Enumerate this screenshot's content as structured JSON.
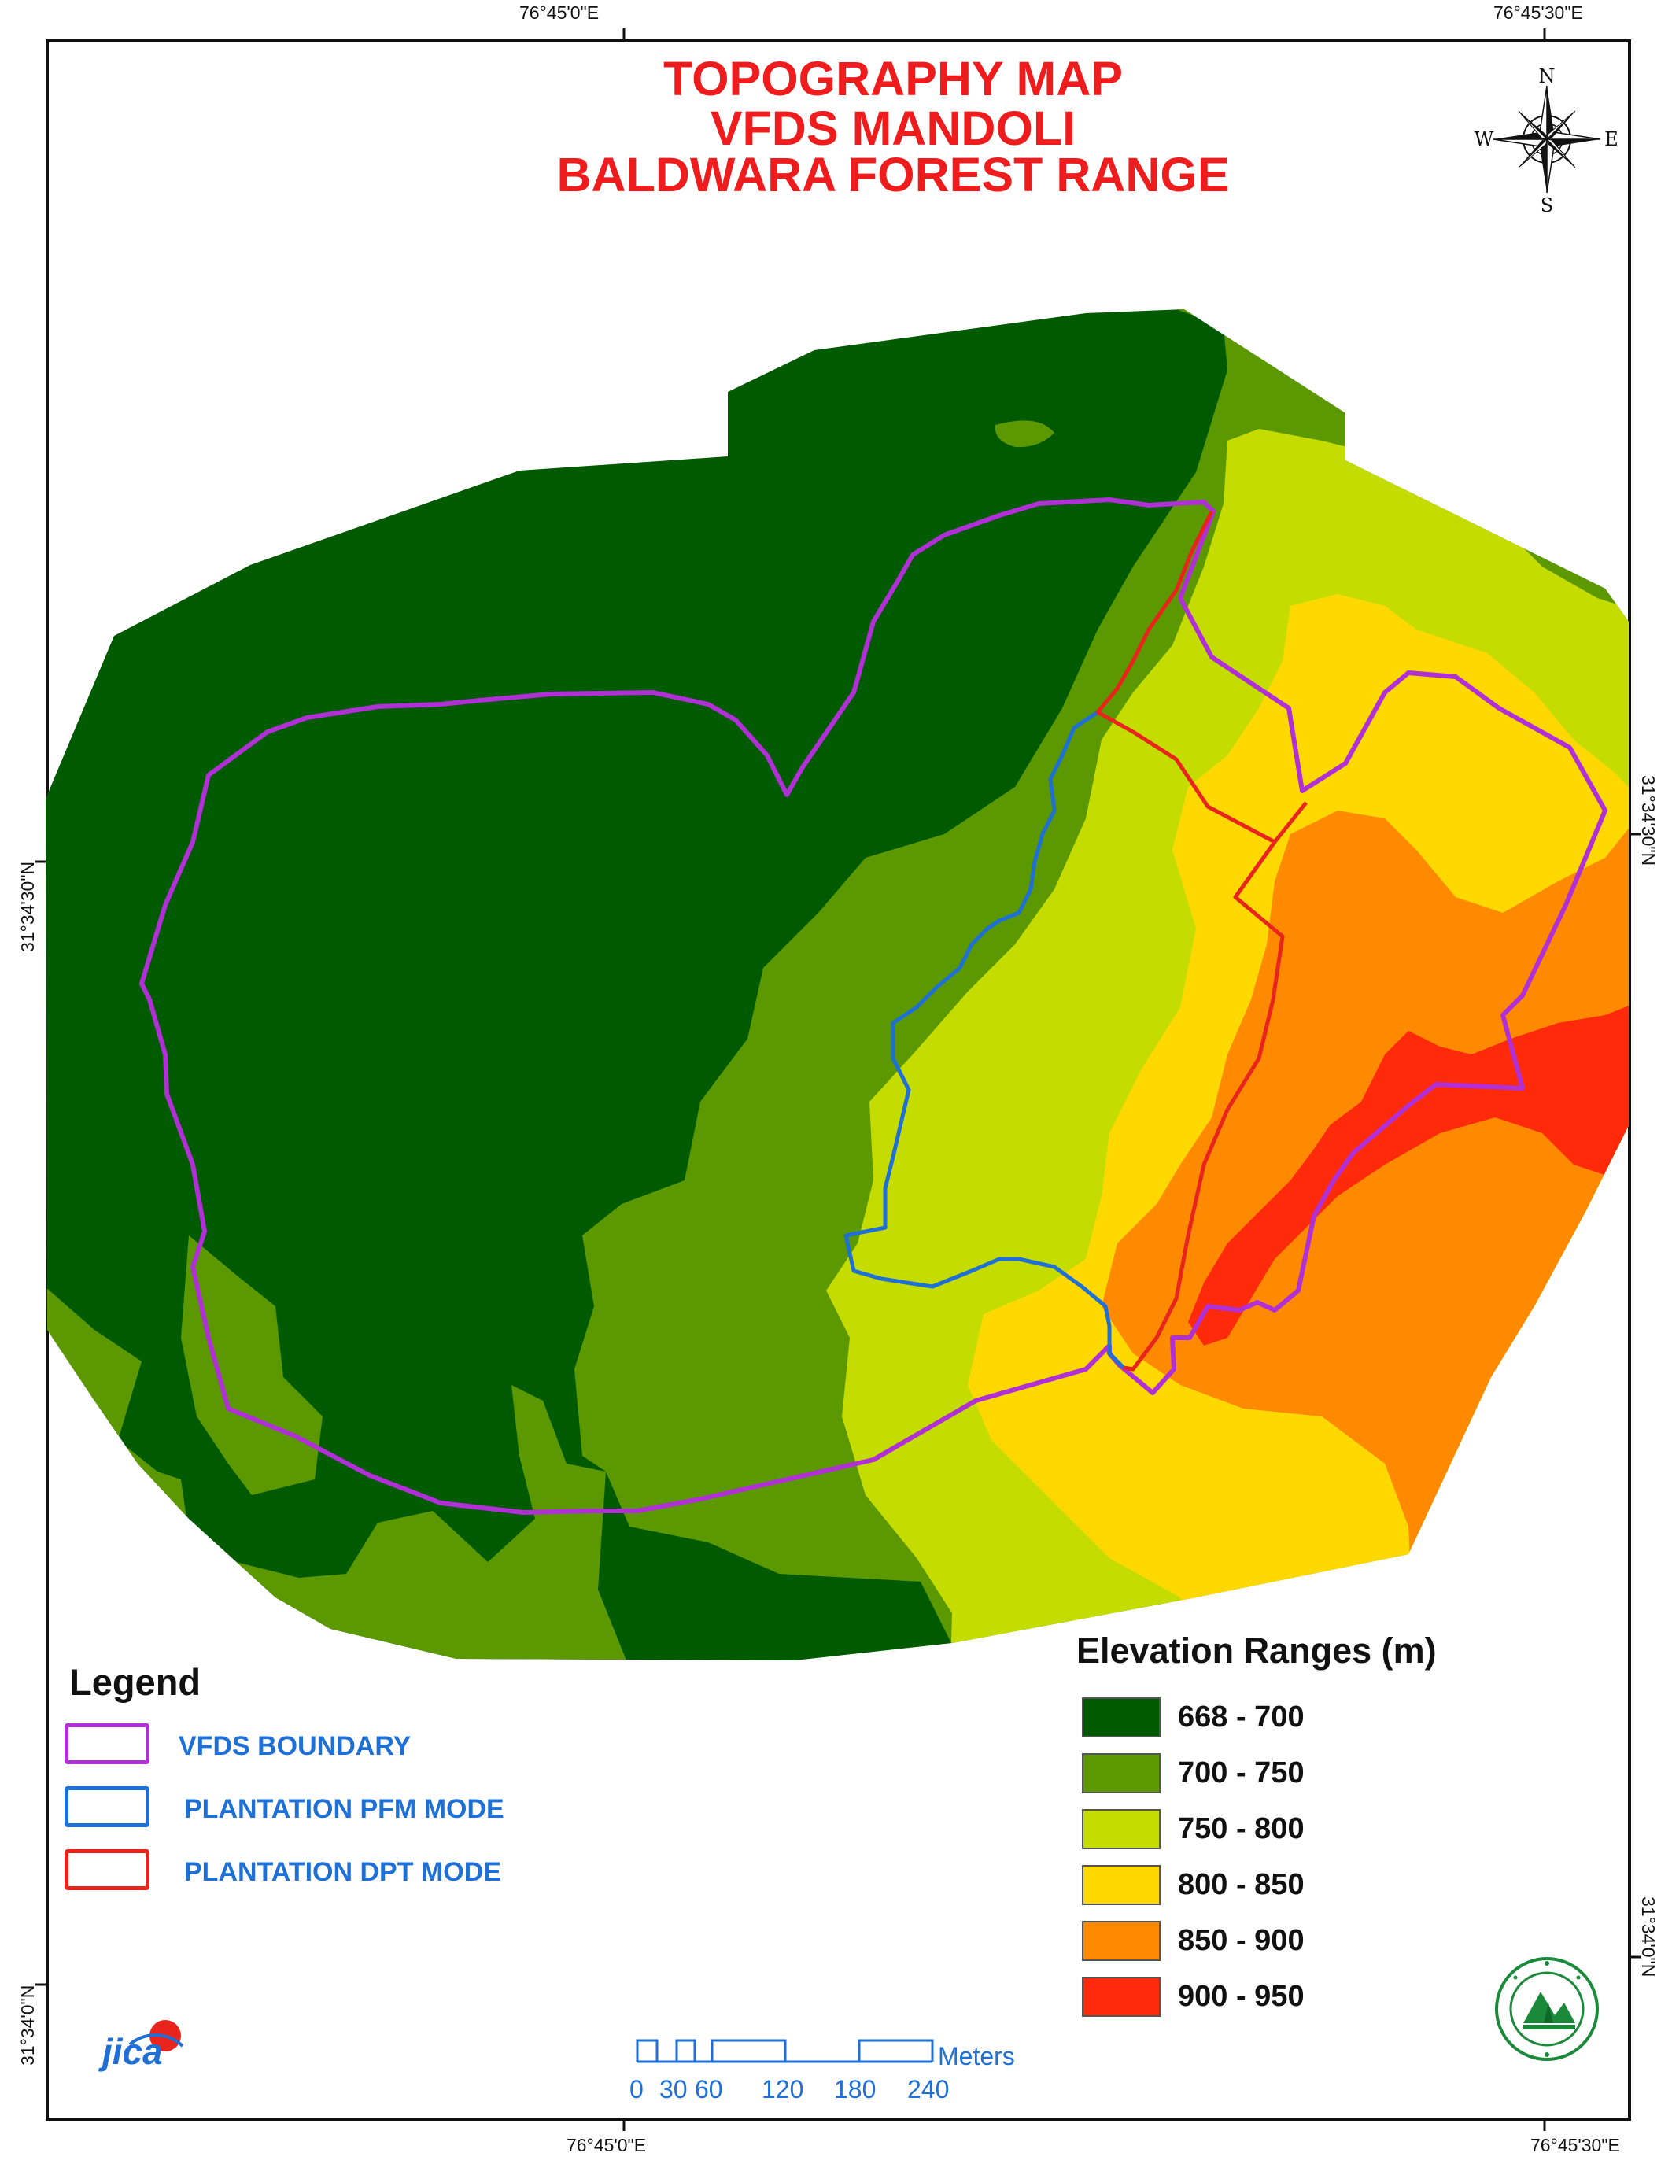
{
  "title": {
    "line1": "TOPOGRAPHY MAP",
    "line2": "VFDS MANDOLI",
    "line3": "BALDWARA FOREST RANGE"
  },
  "graticule": {
    "top_left": "76°45'0\"E",
    "top_right": "76°45'30\"E",
    "bottom_left": "76°45'0\"E",
    "bottom_right": "76°45'30\"E",
    "left_upper": "31°34'30\"N",
    "left_lower": "31°34'0\"N",
    "right_upper": "31°34'30\"N",
    "right_lower": "31°34'0\"N"
  },
  "north_arrow": {
    "n": "N",
    "s": "S",
    "e": "E",
    "w": "W",
    "icon": "compass-rose-icon"
  },
  "legend": {
    "title": "Legend",
    "items": [
      {
        "label": "VFDS BOUNDARY",
        "color": "#b02fd6"
      },
      {
        "label": "PLANTATION PFM MODE",
        "color": "#1e6fd6"
      },
      {
        "label": "PLANTATION DPT MODE",
        "color": "#e8241c"
      }
    ]
  },
  "elevation": {
    "title": "Elevation Ranges (m)",
    "ranges": [
      {
        "label": "668 - 700",
        "color": "#005a00"
      },
      {
        "label": "700 - 750",
        "color": "#5c9800"
      },
      {
        "label": "750 - 800",
        "color": "#c5dc00"
      },
      {
        "label": "800 - 850",
        "color": "#ffd800"
      },
      {
        "label": "850 - 900",
        "color": "#ff8a00"
      },
      {
        "label": "900 - 950",
        "color": "#ff2a0a"
      }
    ]
  },
  "scale_bar": {
    "unit": "Meters",
    "ticks": [
      "0",
      "30",
      "60",
      "120",
      "180",
      "240"
    ]
  },
  "logos": {
    "left": "jica",
    "left_icon": "jica-logo-icon",
    "right_icon": "himachal-forest-department-seal-icon"
  }
}
